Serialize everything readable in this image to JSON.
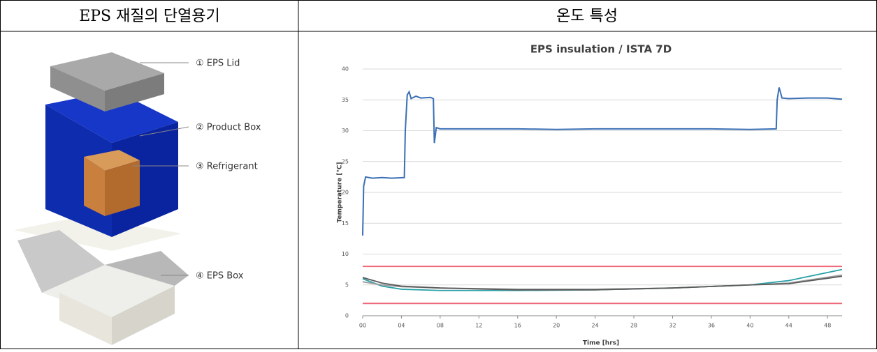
{
  "table": {
    "headers": [
      "EPS 재질의 단열용기",
      "온도 특성"
    ]
  },
  "diagram": {
    "labels": [
      "① EPS Lid",
      "② Product Box",
      "③ Refrigerant",
      "④ EPS Box"
    ]
  },
  "chart_data": {
    "type": "line",
    "title": "EPS insulation /  ISTA 7D",
    "xlabel": "Time [hrs]",
    "ylabel": "Temperature [℃]",
    "xlim": [
      0,
      49.5
    ],
    "ylim": [
      0,
      40
    ],
    "xticks": [
      {
        "value": 0,
        "label": "00"
      },
      {
        "value": 4,
        "label": "04"
      },
      {
        "value": 8,
        "label": "08"
      },
      12,
      16,
      20,
      24,
      28,
      32,
      36,
      40,
      44,
      48
    ],
    "yticks": [
      0,
      5,
      10,
      15,
      20,
      25,
      30,
      35,
      40
    ],
    "grid": true,
    "series": [
      {
        "color": "#ee6677",
        "x": [
          0,
          49.5
        ],
        "values": [
          8,
          8
        ]
      },
      {
        "color": "#ee6677",
        "x": [
          0,
          49.5
        ],
        "values": [
          2,
          2
        ]
      },
      {
        "color": "#2aa0a8",
        "x": [
          0,
          2,
          4,
          8,
          16,
          24,
          32,
          40,
          44,
          49.5
        ],
        "values": [
          6,
          4.8,
          4.3,
          4.1,
          4.1,
          4.2,
          4.5,
          5,
          5.7,
          7.5
        ]
      },
      {
        "color": "#9a9a9a",
        "x": [
          0,
          2,
          4,
          8,
          16,
          24,
          32,
          40,
          44,
          49.5
        ],
        "values": [
          5.5,
          5,
          4.7,
          4.5,
          4.3,
          4.3,
          4.5,
          5,
          5.3,
          6.6
        ]
      },
      {
        "color": "#5a5a5a",
        "x": [
          0,
          2,
          4,
          8,
          16,
          24,
          32,
          40,
          44,
          49.5
        ],
        "values": [
          6.2,
          5.3,
          4.8,
          4.5,
          4.2,
          4.2,
          4.5,
          5,
          5.2,
          6.4
        ]
      },
      {
        "color": "#3a6fb5",
        "x": [
          0,
          0.1,
          0.3,
          1,
          2,
          3,
          4.3,
          4.4,
          4.6,
          4.8,
          5,
          5.5,
          6,
          7,
          7.3,
          7.4,
          7.6,
          8,
          12,
          16,
          20,
          24,
          28,
          32,
          36,
          40,
          42.7,
          42.8,
          43,
          43.3,
          44,
          46,
          48,
          49.5
        ],
        "values": [
          13,
          21,
          22.5,
          22.3,
          22.4,
          22.3,
          22.4,
          30,
          35.8,
          36.3,
          35.2,
          35.6,
          35.3,
          35.4,
          35.2,
          28,
          30.5,
          30.3,
          30.3,
          30.3,
          30.2,
          30.3,
          30.3,
          30.3,
          30.3,
          30.2,
          30.3,
          35,
          37,
          35.3,
          35.2,
          35.3,
          35.3,
          35.1
        ]
      }
    ]
  }
}
